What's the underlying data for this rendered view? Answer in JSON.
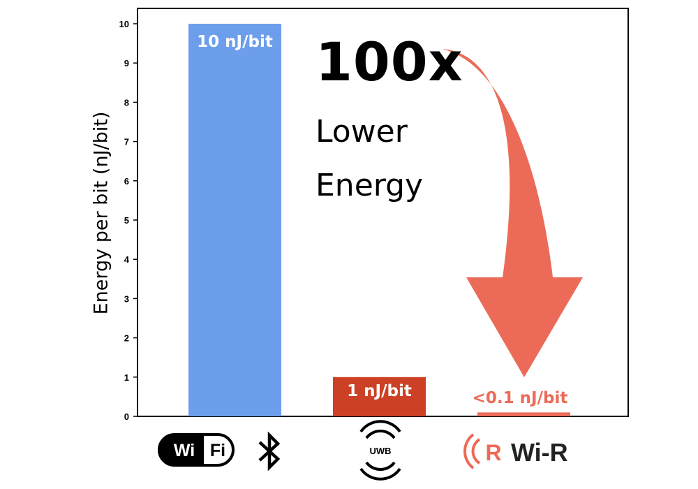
{
  "chart_data": {
    "type": "bar",
    "categories": [
      "Wi Fi / Bluetooth",
      "UWB",
      "Wi-R"
    ],
    "values": [
      10,
      1,
      0.1
    ],
    "bar_labels": [
      "10 nJ/bit",
      "1 nJ/bit",
      "<0.1 nJ/bit"
    ],
    "colors": [
      "#6d9eeb",
      "#cc4125",
      "#ec6b58"
    ],
    "ylabel": "Energy per bit (nJ/bit)",
    "ylim": [
      0,
      10
    ],
    "yticks": [
      0,
      1,
      2,
      3,
      4,
      5,
      6,
      7,
      8,
      9,
      10
    ],
    "grid": false,
    "annotation": {
      "headline": "100x",
      "line1": "Lower",
      "line2": "Energy",
      "arrow_color": "#ec6b58"
    }
  },
  "logos": {
    "wifi_left": "Wi",
    "wifi_right": "Fi",
    "uwb": "UWB",
    "wir_mark": "R",
    "wir_text": "Wi-R"
  }
}
